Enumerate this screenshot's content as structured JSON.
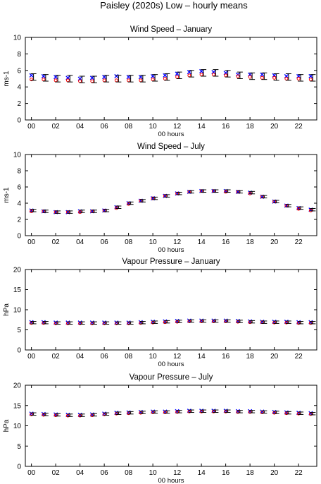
{
  "figure_title": "Paisley (2020s) Low – hourly means",
  "chart_data": [
    {
      "type": "scatter",
      "title": "Wind Speed – January",
      "xlabel": "00 hours",
      "ylabel": "ms-1",
      "ylim": [
        0,
        10
      ],
      "yticks": [
        "0",
        "2",
        "4",
        "6",
        "8",
        "10"
      ],
      "xlim": [
        -0.5,
        23.5
      ],
      "xticks": [
        "00",
        "02",
        "04",
        "06",
        "08",
        "10",
        "12",
        "14",
        "16",
        "18",
        "20",
        "22"
      ],
      "x": [
        0,
        1,
        2,
        3,
        4,
        5,
        6,
        7,
        8,
        9,
        10,
        11,
        12,
        13,
        14,
        15,
        16,
        17,
        18,
        19,
        20,
        21,
        22,
        23
      ],
      "series": [
        {
          "marker": "x",
          "color": "#0000ff",
          "values": [
            5.4,
            5.3,
            5.2,
            5.1,
            5.0,
            5.1,
            5.2,
            5.3,
            5.2,
            5.2,
            5.3,
            5.4,
            5.6,
            5.8,
            5.9,
            5.8,
            5.7,
            5.5,
            5.5,
            5.5,
            5.4,
            5.3,
            5.3,
            5.3
          ]
        },
        {
          "marker": "o",
          "color": "#ff0000",
          "values": [
            4.9,
            4.9,
            4.8,
            4.8,
            4.7,
            4.7,
            4.8,
            4.8,
            4.8,
            4.8,
            4.9,
            5.0,
            5.2,
            5.4,
            5.5,
            5.5,
            5.4,
            5.3,
            5.2,
            5.1,
            5.1,
            5.0,
            5.0,
            4.9
          ]
        },
        {
          "marker": "errorbar",
          "color": "#000000",
          "values": [
            5.2,
            5.1,
            5.0,
            5.0,
            4.9,
            4.9,
            5.0,
            5.0,
            5.0,
            5.0,
            5.1,
            5.2,
            5.4,
            5.6,
            5.7,
            5.7,
            5.6,
            5.4,
            5.3,
            5.3,
            5.2,
            5.2,
            5.1,
            5.1
          ],
          "err": [
            0.4,
            0.4,
            0.4,
            0.4,
            0.4,
            0.4,
            0.4,
            0.4,
            0.4,
            0.4,
            0.4,
            0.4,
            0.4,
            0.4,
            0.4,
            0.4,
            0.4,
            0.4,
            0.4,
            0.4,
            0.4,
            0.4,
            0.4,
            0.4
          ]
        }
      ]
    },
    {
      "type": "scatter",
      "title": "Wind Speed – July",
      "xlabel": "00 hours",
      "ylabel": "ms-1",
      "ylim": [
        0,
        10
      ],
      "yticks": [
        "0",
        "2",
        "4",
        "6",
        "8",
        "10"
      ],
      "xlim": [
        -0.5,
        23.5
      ],
      "xticks": [
        "00",
        "02",
        "04",
        "06",
        "08",
        "10",
        "12",
        "14",
        "16",
        "18",
        "20",
        "22"
      ],
      "x": [
        0,
        1,
        2,
        3,
        4,
        5,
        6,
        7,
        8,
        9,
        10,
        11,
        12,
        13,
        14,
        15,
        16,
        17,
        18,
        19,
        20,
        21,
        22,
        23
      ],
      "series": [
        {
          "marker": "x",
          "color": "#0000ff",
          "values": [
            3.1,
            3.0,
            2.9,
            2.9,
            3.0,
            3.0,
            3.1,
            3.5,
            4.0,
            4.3,
            4.6,
            4.9,
            5.2,
            5.4,
            5.5,
            5.5,
            5.5,
            5.4,
            5.3,
            4.8,
            4.2,
            3.7,
            3.4,
            3.2
          ]
        },
        {
          "marker": "o",
          "color": "#ff0000",
          "values": [
            3.0,
            3.0,
            2.9,
            2.9,
            2.9,
            3.0,
            3.1,
            3.4,
            3.9,
            4.3,
            4.6,
            4.9,
            5.2,
            5.4,
            5.5,
            5.5,
            5.4,
            5.4,
            5.2,
            4.8,
            4.2,
            3.7,
            3.3,
            3.1
          ]
        },
        {
          "marker": "errorbar",
          "color": "#000000",
          "values": [
            3.1,
            3.0,
            2.9,
            2.9,
            3.0,
            3.0,
            3.1,
            3.5,
            4.0,
            4.3,
            4.6,
            4.9,
            5.2,
            5.4,
            5.5,
            5.5,
            5.5,
            5.4,
            5.3,
            4.8,
            4.2,
            3.7,
            3.4,
            3.2
          ],
          "err": [
            0.15,
            0.15,
            0.15,
            0.15,
            0.15,
            0.15,
            0.15,
            0.15,
            0.15,
            0.15,
            0.15,
            0.15,
            0.15,
            0.15,
            0.15,
            0.15,
            0.15,
            0.15,
            0.15,
            0.15,
            0.15,
            0.15,
            0.15,
            0.15
          ]
        }
      ]
    },
    {
      "type": "scatter",
      "title": "Vapour Pressure – January",
      "xlabel": "00 hours",
      "ylabel": "hPa",
      "ylim": [
        0,
        20
      ],
      "yticks": [
        "0",
        "5",
        "10",
        "15",
        "20"
      ],
      "xlim": [
        -0.5,
        23.5
      ],
      "xticks": [
        "00",
        "02",
        "04",
        "06",
        "08",
        "10",
        "12",
        "14",
        "16",
        "18",
        "20",
        "22"
      ],
      "x": [
        0,
        1,
        2,
        3,
        4,
        5,
        6,
        7,
        8,
        9,
        10,
        11,
        12,
        13,
        14,
        15,
        16,
        17,
        18,
        19,
        20,
        21,
        22,
        23
      ],
      "series": [
        {
          "marker": "x",
          "color": "#0000ff",
          "values": [
            6.9,
            6.9,
            6.8,
            6.8,
            6.8,
            6.8,
            6.8,
            6.8,
            6.8,
            6.9,
            7.0,
            7.1,
            7.2,
            7.3,
            7.3,
            7.3,
            7.3,
            7.2,
            7.1,
            7.0,
            7.0,
            7.0,
            6.9,
            6.9
          ]
        },
        {
          "marker": "o",
          "color": "#ff0000",
          "values": [
            6.7,
            6.7,
            6.6,
            6.6,
            6.6,
            6.6,
            6.6,
            6.6,
            6.6,
            6.7,
            6.8,
            6.9,
            7.0,
            7.1,
            7.1,
            7.1,
            7.1,
            7.0,
            6.9,
            6.9,
            6.8,
            6.8,
            6.7,
            6.7
          ]
        },
        {
          "marker": "errorbar",
          "color": "#000000",
          "values": [
            6.8,
            6.8,
            6.7,
            6.7,
            6.7,
            6.7,
            6.7,
            6.7,
            6.7,
            6.8,
            6.9,
            7.0,
            7.1,
            7.2,
            7.2,
            7.2,
            7.2,
            7.1,
            7.0,
            6.9,
            6.9,
            6.9,
            6.8,
            6.8
          ],
          "err": [
            0.3,
            0.3,
            0.3,
            0.3,
            0.3,
            0.3,
            0.3,
            0.3,
            0.3,
            0.3,
            0.3,
            0.3,
            0.3,
            0.3,
            0.3,
            0.3,
            0.3,
            0.3,
            0.3,
            0.3,
            0.3,
            0.3,
            0.3,
            0.3
          ]
        }
      ]
    },
    {
      "type": "scatter",
      "title": "Vapour Pressure – July",
      "xlabel": "00 hours",
      "ylabel": "hPa",
      "ylim": [
        0,
        20
      ],
      "yticks": [
        "0",
        "5",
        "10",
        "15",
        "20"
      ],
      "xlim": [
        -0.5,
        23.5
      ],
      "xticks": [
        "00",
        "02",
        "04",
        "06",
        "08",
        "10",
        "12",
        "14",
        "16",
        "18",
        "20",
        "22"
      ],
      "x": [
        0,
        1,
        2,
        3,
        4,
        5,
        6,
        7,
        8,
        9,
        10,
        11,
        12,
        13,
        14,
        15,
        16,
        17,
        18,
        19,
        20,
        21,
        22,
        23
      ],
      "series": [
        {
          "marker": "x",
          "color": "#0000ff",
          "values": [
            13.0,
            12.9,
            12.8,
            12.7,
            12.7,
            12.8,
            13.0,
            13.2,
            13.3,
            13.4,
            13.5,
            13.5,
            13.6,
            13.7,
            13.7,
            13.7,
            13.7,
            13.6,
            13.6,
            13.5,
            13.4,
            13.3,
            13.2,
            13.1
          ]
        },
        {
          "marker": "o",
          "color": "#ff0000",
          "values": [
            12.8,
            12.7,
            12.6,
            12.5,
            12.5,
            12.6,
            12.8,
            13.0,
            13.1,
            13.2,
            13.3,
            13.3,
            13.4,
            13.5,
            13.5,
            13.5,
            13.5,
            13.4,
            13.4,
            13.3,
            13.2,
            13.1,
            13.0,
            12.9
          ]
        },
        {
          "marker": "errorbar",
          "color": "#000000",
          "values": [
            12.9,
            12.8,
            12.7,
            12.6,
            12.6,
            12.7,
            12.9,
            13.1,
            13.2,
            13.3,
            13.4,
            13.4,
            13.5,
            13.6,
            13.6,
            13.6,
            13.6,
            13.5,
            13.5,
            13.4,
            13.3,
            13.2,
            13.1,
            13.0
          ],
          "err": [
            0.3,
            0.3,
            0.3,
            0.3,
            0.3,
            0.3,
            0.3,
            0.3,
            0.3,
            0.3,
            0.3,
            0.3,
            0.3,
            0.3,
            0.3,
            0.3,
            0.3,
            0.3,
            0.3,
            0.3,
            0.3,
            0.3,
            0.3,
            0.3
          ]
        }
      ]
    }
  ]
}
